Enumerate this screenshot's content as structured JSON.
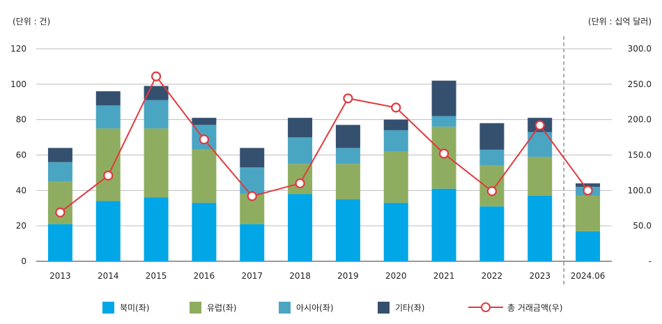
{
  "chart_data": {
    "type": "bar",
    "stacked": true,
    "categories": [
      "2013",
      "2014",
      "2015",
      "2016",
      "2017",
      "2018",
      "2019",
      "2020",
      "2021",
      "2022",
      "2023",
      "2024.06"
    ],
    "left_unit_label": "(단위 : 건)",
    "right_unit_label": "(단위 : 십억 달러)",
    "ylim": [
      0,
      120
    ],
    "yticks": [
      "0",
      "20",
      "40",
      "60",
      "80",
      "100",
      "120"
    ],
    "y2lim": [
      0,
      300
    ],
    "y2ticks": [
      "-",
      "50.0",
      "100.0",
      "150.0",
      "200.0",
      "250.0",
      "300.0"
    ],
    "series": [
      {
        "name": "북미(좌)",
        "color": "#00a6e6",
        "values": [
          21,
          34,
          36,
          33,
          21,
          38,
          35,
          33,
          41,
          31,
          37,
          17
        ]
      },
      {
        "name": "유럽(좌)",
        "color": "#8fad60",
        "values": [
          24,
          41,
          39,
          30,
          17,
          17,
          20,
          29,
          35,
          23,
          22,
          20
        ]
      },
      {
        "name": "아시아(좌)",
        "color": "#4aa5c3",
        "values": [
          11,
          13,
          16,
          14,
          15,
          15,
          9,
          12,
          6,
          9,
          14,
          5
        ]
      },
      {
        "name": "기타(좌)",
        "color": "#35506f",
        "values": [
          8,
          8,
          8,
          4,
          11,
          11,
          13,
          6,
          20,
          15,
          8,
          2
        ]
      }
    ],
    "line_series": {
      "name": "총 거래금액(우)",
      "color": "#e03a3e",
      "axis": "right",
      "values": [
        69,
        121,
        261,
        172,
        92,
        110,
        230,
        217,
        152,
        99,
        192,
        100
      ]
    },
    "divider_before": "2024.06",
    "grid": true,
    "legend_position": "bottom"
  }
}
